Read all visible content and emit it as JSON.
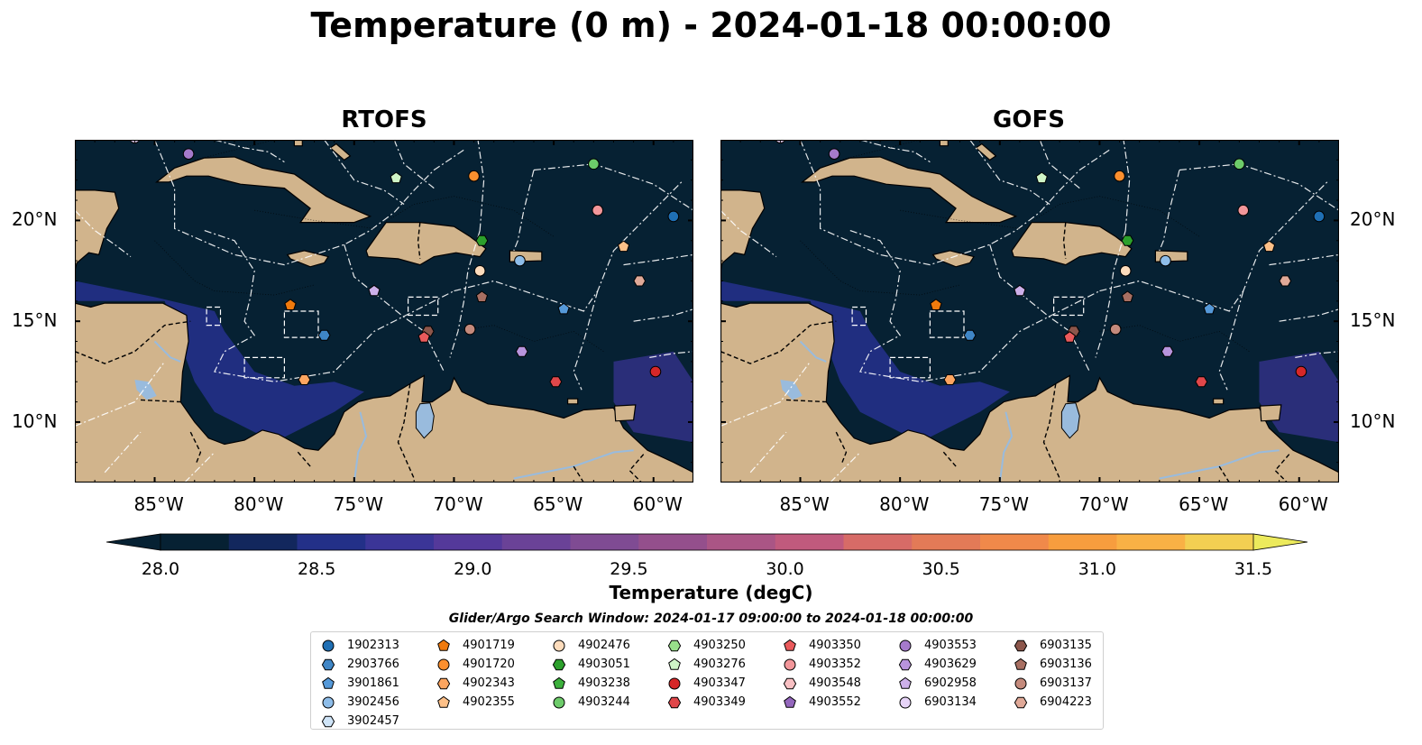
{
  "title": "Temperature (0 m) - 2024-01-18 00:00:00",
  "colors": {
    "ocean": "#062133",
    "land": "#d1b48c",
    "lake": "#99bbdd",
    "eez": "#ffffff",
    "border": "#000000"
  },
  "chart_data": [
    {
      "type": "heatmap",
      "title": "RTOFS",
      "x_ticks": [
        "85°W",
        "80°W",
        "75°W",
        "70°W",
        "65°W",
        "60°W"
      ],
      "y_ticks": [
        "20°N",
        "15°N",
        "10°N"
      ],
      "xlim": [
        -89.0,
        -58.0
      ],
      "ylim": [
        7.0,
        24.0
      ],
      "ylabels_side": "left",
      "warm_water_strength": 1.0,
      "floats": [
        {
          "id": "6903134",
          "lon": -86.0,
          "lat": 24.1
        },
        {
          "id": "4903553",
          "lon": -83.3,
          "lat": 23.3
        },
        {
          "id": "4903276",
          "lon": -72.9,
          "lat": 22.1
        },
        {
          "id": "4901720",
          "lon": -69.0,
          "lat": 22.2
        },
        {
          "id": "4903244",
          "lon": -63.0,
          "lat": 22.8
        },
        {
          "id": "4903352",
          "lon": -62.8,
          "lat": 20.5
        },
        {
          "id": "1902313",
          "lon": -59.0,
          "lat": 20.2
        },
        {
          "id": "4903051",
          "lon": -68.6,
          "lat": 19.0
        },
        {
          "id": "4902355",
          "lon": -61.5,
          "lat": 18.7
        },
        {
          "id": "3902456",
          "lon": -66.7,
          "lat": 18.0
        },
        {
          "id": "4902476",
          "lon": -68.7,
          "lat": 17.5
        },
        {
          "id": "6904223",
          "lon": -60.7,
          "lat": 17.0
        },
        {
          "id": "6902958",
          "lon": -74.0,
          "lat": 16.5
        },
        {
          "id": "4901719",
          "lon": -78.2,
          "lat": 15.8
        },
        {
          "id": "6903136",
          "lon": -68.6,
          "lat": 16.2
        },
        {
          "id": "3901861",
          "lon": -64.5,
          "lat": 15.6
        },
        {
          "id": "6903137",
          "lon": -69.2,
          "lat": 14.6
        },
        {
          "id": "6903135",
          "lon": -71.3,
          "lat": 14.5
        },
        {
          "id": "4903350",
          "lon": -71.5,
          "lat": 14.2
        },
        {
          "id": "2903766",
          "lon": -76.5,
          "lat": 14.3
        },
        {
          "id": "4903629",
          "lon": -66.6,
          "lat": 13.5
        },
        {
          "id": "4902343",
          "lon": -77.5,
          "lat": 12.1
        },
        {
          "id": "4903349",
          "lon": -64.9,
          "lat": 12.0
        },
        {
          "id": "4903347",
          "lon": -59.9,
          "lat": 12.5
        }
      ]
    },
    {
      "type": "heatmap",
      "title": "GOFS",
      "x_ticks": [
        "85°W",
        "80°W",
        "75°W",
        "70°W",
        "65°W",
        "60°W"
      ],
      "y_ticks": [
        "20°N",
        "15°N",
        "10°N"
      ],
      "xlim": [
        -89.0,
        -58.0
      ],
      "ylim": [
        7.0,
        24.0
      ],
      "ylabels_side": "right",
      "warm_water_strength": 0.7,
      "floats": [
        {
          "id": "6903134",
          "lon": -86.0,
          "lat": 24.1
        },
        {
          "id": "4903553",
          "lon": -83.3,
          "lat": 23.3
        },
        {
          "id": "4903276",
          "lon": -72.9,
          "lat": 22.1
        },
        {
          "id": "4901720",
          "lon": -69.0,
          "lat": 22.2
        },
        {
          "id": "4903244",
          "lon": -63.0,
          "lat": 22.8
        },
        {
          "id": "4903352",
          "lon": -62.8,
          "lat": 20.5
        },
        {
          "id": "1902313",
          "lon": -59.0,
          "lat": 20.2
        },
        {
          "id": "4903051",
          "lon": -68.6,
          "lat": 19.0
        },
        {
          "id": "4902355",
          "lon": -61.5,
          "lat": 18.7
        },
        {
          "id": "3902456",
          "lon": -66.7,
          "lat": 18.0
        },
        {
          "id": "4902476",
          "lon": -68.7,
          "lat": 17.5
        },
        {
          "id": "6904223",
          "lon": -60.7,
          "lat": 17.0
        },
        {
          "id": "6902958",
          "lon": -74.0,
          "lat": 16.5
        },
        {
          "id": "4901719",
          "lon": -78.2,
          "lat": 15.8
        },
        {
          "id": "6903136",
          "lon": -68.6,
          "lat": 16.2
        },
        {
          "id": "3901861",
          "lon": -64.5,
          "lat": 15.6
        },
        {
          "id": "6903137",
          "lon": -69.2,
          "lat": 14.6
        },
        {
          "id": "6903135",
          "lon": -71.3,
          "lat": 14.5
        },
        {
          "id": "4903350",
          "lon": -71.5,
          "lat": 14.2
        },
        {
          "id": "2903766",
          "lon": -76.5,
          "lat": 14.3
        },
        {
          "id": "4903629",
          "lon": -66.6,
          "lat": 13.5
        },
        {
          "id": "4902343",
          "lon": -77.5,
          "lat": 12.1
        },
        {
          "id": "4903349",
          "lon": -64.9,
          "lat": 12.0
        },
        {
          "id": "4903347",
          "lon": -59.9,
          "lat": 12.5
        }
      ]
    }
  ],
  "colorbar": {
    "label": "Temperature (degC)",
    "vmin": 28.0,
    "vmax": 31.5,
    "ticks": [
      "28.0",
      "28.5",
      "29.0",
      "29.5",
      "30.0",
      "30.5",
      "31.0",
      "31.5"
    ],
    "colors": [
      "#062133",
      "#12275d",
      "#233088",
      "#3b3597",
      "#54399a",
      "#6a4297",
      "#7f4b93",
      "#944f8c",
      "#aa5585",
      "#c05a7d",
      "#d76b67",
      "#e37a57",
      "#f0894a",
      "#f79d3e",
      "#f9b145",
      "#f3cf52",
      "#ecea5c"
    ],
    "extend": "both"
  },
  "legend": {
    "title": "Glider/Argo Search Window: 2024-01-17 09:00:00 to 2024-01-18 00:00:00",
    "columns": [
      [
        {
          "id": "1902313",
          "marker": "circle",
          "color": "#1f6fb4"
        },
        {
          "id": "2903766",
          "marker": "hexagon",
          "color": "#3f86c6"
        },
        {
          "id": "3901861",
          "marker": "pentagon",
          "color": "#5599d9"
        },
        {
          "id": "3902456",
          "marker": "circle",
          "color": "#8ebde9"
        },
        {
          "id": "3902457",
          "marker": "hexagon",
          "color": "#cfe4f7"
        }
      ],
      [
        {
          "id": "4901719",
          "marker": "pentagon",
          "color": "#f07a0d"
        },
        {
          "id": "4901720",
          "marker": "circle",
          "color": "#fb8f2e"
        },
        {
          "id": "4902343",
          "marker": "hexagon",
          "color": "#fca560"
        },
        {
          "id": "4902355",
          "marker": "pentagon",
          "color": "#fdc088"
        }
      ],
      [
        {
          "id": "4902476",
          "marker": "circle",
          "color": "#fddcbc"
        },
        {
          "id": "4903051",
          "marker": "hexagon",
          "color": "#2ca02c"
        },
        {
          "id": "4903238",
          "marker": "pentagon",
          "color": "#3cb03c"
        },
        {
          "id": "4903244",
          "marker": "circle",
          "color": "#6dcb6a"
        }
      ],
      [
        {
          "id": "4903250",
          "marker": "hexagon",
          "color": "#98df8a"
        },
        {
          "id": "4903276",
          "marker": "pentagon",
          "color": "#cff5c7"
        },
        {
          "id": "4903347",
          "marker": "circle",
          "color": "#d62728"
        },
        {
          "id": "4903349",
          "marker": "hexagon",
          "color": "#e0474a"
        }
      ],
      [
        {
          "id": "4903350",
          "marker": "pentagon",
          "color": "#ea5a5c"
        },
        {
          "id": "4903352",
          "marker": "circle",
          "color": "#f2969a"
        },
        {
          "id": "4903548",
          "marker": "hexagon",
          "color": "#f8c0c3"
        },
        {
          "id": "4903552",
          "marker": "pentagon",
          "color": "#9467bd"
        }
      ],
      [
        {
          "id": "4903553",
          "marker": "circle",
          "color": "#a57acb"
        },
        {
          "id": "4903629",
          "marker": "hexagon",
          "color": "#b894dd"
        },
        {
          "id": "6902958",
          "marker": "pentagon",
          "color": "#cdb0ea"
        },
        {
          "id": "6903134",
          "marker": "circle",
          "color": "#e6d3f7"
        }
      ],
      [
        {
          "id": "6903135",
          "marker": "hexagon",
          "color": "#8c564b"
        },
        {
          "id": "6903136",
          "marker": "pentagon",
          "color": "#a86f62"
        },
        {
          "id": "6903137",
          "marker": "circle",
          "color": "#c48a7c"
        },
        {
          "id": "6904223",
          "marker": "hexagon",
          "color": "#e0a998"
        }
      ]
    ]
  }
}
